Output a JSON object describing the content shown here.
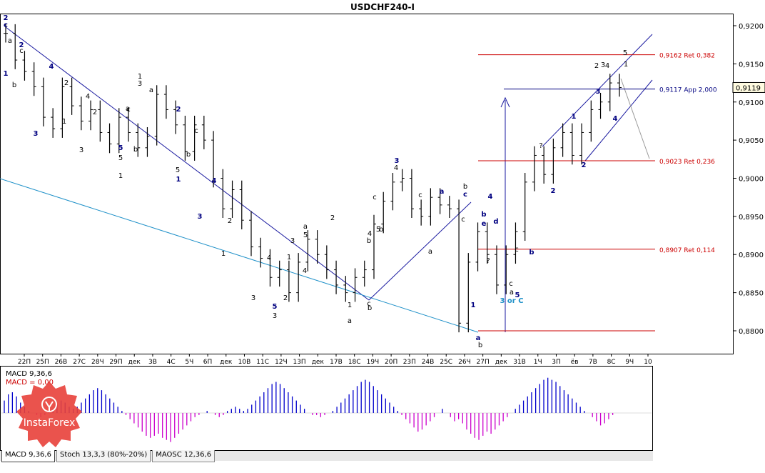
{
  "title": "USDCHF240-I",
  "chart_data": [
    {
      "type": "line",
      "title": "USDCHF240-I",
      "ylim": [
        0.877,
        0.9215
      ],
      "y_ticks": [
        "0,9200",
        "0,9150",
        "0,9100",
        "0,9050",
        "0,9000",
        "0,8950",
        "0,8900",
        "0,8850",
        "0,8800"
      ],
      "y_tick_values": [
        0.92,
        0.915,
        0.91,
        0.905,
        0.9,
        0.895,
        0.89,
        0.885,
        0.88
      ],
      "x_ticks": [
        "22П",
        "25П",
        "26В",
        "27С",
        "28Ч",
        "29П",
        "дек",
        "3В",
        "4С",
        "5Ч",
        "6П",
        "дек",
        "10В",
        "11С",
        "12Ч",
        "13П",
        "дек",
        "17В",
        "18С",
        "19Ч",
        "20П",
        "23П",
        "24В",
        "25С",
        "26Ч",
        "27П",
        "дек",
        "31В",
        "1Ч",
        "3П",
        "ёв",
        "7В",
        "8С",
        "9Ч",
        "10"
      ],
      "current_price": "0,9119",
      "current_value": 0.9119,
      "levels": [
        {
          "label": "0,9162 Ret 0,382",
          "value": 0.9162,
          "color": "#cc0000"
        },
        {
          "label": "0,9117 App 2,000",
          "value": 0.9117,
          "color": "#000080"
        },
        {
          "label": "0,9023 Ret 0,236",
          "value": 0.9023,
          "color": "#cc0000"
        },
        {
          "label": "0,8907 Ret 0,114",
          "value": 0.8907,
          "color": "#cc0000"
        },
        {
          "label": "",
          "value": 0.88,
          "color": "#cc0000"
        }
      ],
      "series": [
        {
          "values": [
            0.919,
            0.9155,
            0.914,
            0.912,
            0.908,
            0.9065,
            0.912,
            0.9095,
            0.9075,
            0.909,
            0.906,
            0.9045,
            0.908,
            0.906,
            0.904,
            0.9055,
            0.911,
            0.909,
            0.907,
            0.9035,
            0.907,
            0.905,
            0.9,
            0.896,
            0.8985,
            0.8945,
            0.891,
            0.8895,
            0.887,
            0.888,
            0.885,
            0.889,
            0.892,
            0.89,
            0.888,
            0.886,
            0.885,
            0.887,
            0.888,
            0.894,
            0.897,
            0.8995,
            0.9,
            0.896,
            0.895,
            0.8975,
            0.8965,
            0.896,
            0.881,
            0.889,
            0.893,
            0.89,
            0.886,
            0.89,
            0.893,
            0.8995,
            0.903,
            0.9005,
            0.904,
            0.906,
            0.903,
            0.906,
            0.909,
            0.91,
            0.9125,
            0.9119
          ]
        }
      ],
      "wave_labels": [
        {
          "text": "2",
          "color": "#000080"
        },
        {
          "text": "c",
          "color": "#000080"
        },
        {
          "text": "a",
          "color": "#000000"
        },
        {
          "text": "2",
          "color": "#000080"
        },
        {
          "text": "c",
          "color": "#000000"
        },
        {
          "text": "1",
          "color": "#000080"
        },
        {
          "text": "b",
          "color": "#000000"
        },
        {
          "text": "4",
          "color": "#000080"
        },
        {
          "text": "3",
          "color": "#000080"
        },
        {
          "text": "2",
          "color": "#000000"
        },
        {
          "text": "1",
          "color": "#000000"
        },
        {
          "text": "4",
          "color": "#000000"
        },
        {
          "text": "3",
          "color": "#000000"
        },
        {
          "text": "2",
          "color": "#000000"
        },
        {
          "text": "c",
          "color": "#000000"
        },
        {
          "text": "a",
          "color": "#000000"
        },
        {
          "text": "b",
          "color": "#000000"
        },
        {
          "text": "5",
          "color": "#000000"
        },
        {
          "text": "5",
          "color": "#000080"
        },
        {
          "text": "1",
          "color": "#000000"
        },
        {
          "text": "1",
          "color": "#000000"
        },
        {
          "text": "3",
          "color": "#000000"
        },
        {
          "text": "a",
          "color": "#000000"
        },
        {
          "text": "2",
          "color": "#000080"
        },
        {
          "text": "c",
          "color": "#000000"
        },
        {
          "text": "b",
          "color": "#000000"
        },
        {
          "text": "5",
          "color": "#000000"
        },
        {
          "text": "1",
          "color": "#000080"
        },
        {
          "text": "4",
          "color": "#000080"
        },
        {
          "text": "3",
          "color": "#000080"
        },
        {
          "text": "2",
          "color": "#000000"
        },
        {
          "text": "1",
          "color": "#000000"
        },
        {
          "text": "3",
          "color": "#000000"
        },
        {
          "text": "4",
          "color": "#000000"
        },
        {
          "text": "5",
          "color": "#000080"
        },
        {
          "text": "3",
          "color": "#000000"
        },
        {
          "text": "2",
          "color": "#000000"
        },
        {
          "text": "1",
          "color": "#000000"
        },
        {
          "text": "4",
          "color": "#000000"
        },
        {
          "text": "3",
          "color": "#000000"
        },
        {
          "text": "5",
          "color": "#000000"
        },
        {
          "text": "a",
          "color": "#000000"
        },
        {
          "text": "2",
          "color": "#000000"
        },
        {
          "text": "4",
          "color": "#000000"
        },
        {
          "text": "1",
          "color": "#000000"
        },
        {
          "text": "a",
          "color": "#000000"
        },
        {
          "text": "b",
          "color": "#000000"
        },
        {
          "text": "c",
          "color": "#000000"
        },
        {
          "text": "b",
          "color": "#000000"
        },
        {
          "text": "5",
          "color": "#000000"
        },
        {
          "text": "3",
          "color": "#000080"
        },
        {
          "text": "4",
          "color": "#000000"
        },
        {
          "text": "c",
          "color": "#000000"
        },
        {
          "text": "b",
          "color": "#000000"
        },
        {
          "text": "a",
          "color": "#000080"
        },
        {
          "text": "c",
          "color": "#000000"
        },
        {
          "text": "a",
          "color": "#000000"
        },
        {
          "text": "b",
          "color": "#000000"
        },
        {
          "text": "c",
          "color": "#000080"
        },
        {
          "text": "c",
          "color": "#000000"
        },
        {
          "text": "b",
          "color": "#000080"
        },
        {
          "text": "4",
          "color": "#000080"
        },
        {
          "text": "e",
          "color": "#000080"
        },
        {
          "text": "d",
          "color": "#000080"
        },
        {
          "text": "1",
          "color": "#000080"
        },
        {
          "text": "?",
          "color": "#000000"
        },
        {
          "text": "a",
          "color": "#000080"
        },
        {
          "text": "b",
          "color": "#000000"
        },
        {
          "text": "c",
          "color": "#000000"
        },
        {
          "text": "a",
          "color": "#000000"
        },
        {
          "text": "5",
          "color": "#000080"
        },
        {
          "text": "3 or C",
          "color": "#1e90c8"
        },
        {
          "text": "c",
          "color": "#000000"
        },
        {
          "text": "b",
          "color": "#000080"
        },
        {
          "text": "?",
          "color": "#000000"
        },
        {
          "text": "2",
          "color": "#000080"
        },
        {
          "text": "1",
          "color": "#000080"
        },
        {
          "text": "2",
          "color": "#000080"
        },
        {
          "text": "3",
          "color": "#000080"
        },
        {
          "text": "4",
          "color": "#000080"
        },
        {
          "text": "1",
          "color": "#000000"
        },
        {
          "text": "2",
          "color": "#000000"
        },
        {
          "text": "3",
          "color": "#000000"
        },
        {
          "text": "4",
          "color": "#000000"
        },
        {
          "text": "5",
          "color": "#000000"
        },
        {
          "text": "3",
          "color": "#000080"
        },
        {
          "text": "?",
          "color": "#000000"
        },
        {
          "text": "c",
          "color": "#000080"
        },
        {
          "text": "5",
          "color": "#000080"
        }
      ]
    },
    {
      "type": "bar",
      "title": "MACD 9,36,6",
      "signal_label": "MACD = 0,00",
      "colors": {
        "positive": "#0000cc",
        "negative": "#cc00cc"
      },
      "values": [
        6,
        9,
        10,
        8,
        5,
        3,
        1,
        0,
        -1,
        -2,
        -1,
        1,
        2,
        4,
        6,
        5,
        3,
        2,
        3,
        5,
        7,
        9,
        11,
        12,
        11,
        9,
        7,
        5,
        3,
        1,
        -1,
        -3,
        -5,
        -7,
        -9,
        -11,
        -12,
        -11,
        -10,
        -12,
        -13,
        -14,
        -12,
        -10,
        -8,
        -6,
        -4,
        -2,
        -1,
        0,
        1,
        0,
        -1,
        -2,
        -1,
        1,
        2,
        3,
        2,
        1,
        2,
        4,
        6,
        8,
        10,
        12,
        14,
        15,
        14,
        12,
        10,
        8,
        6,
        4,
        2,
        0,
        -1,
        -1,
        -2,
        -1,
        0,
        1,
        3,
        5,
        7,
        9,
        11,
        13,
        15,
        16,
        15,
        13,
        11,
        9,
        7,
        5,
        3,
        1,
        -1,
        -3,
        -5,
        -7,
        -9,
        -8,
        -6,
        -4,
        -2,
        0,
        2,
        0,
        -2,
        -4,
        -3,
        -5,
        -8,
        -10,
        -12,
        -13,
        -11,
        -9,
        -10,
        -8,
        -6,
        -4,
        -2,
        0,
        2,
        4,
        6,
        8,
        10,
        12,
        14,
        16,
        17,
        16,
        15,
        13,
        11,
        9,
        7,
        5,
        3,
        1,
        0,
        -2,
        -4,
        -6,
        -5,
        -3,
        -1,
        0,
        0
      ]
    }
  ],
  "tabs": [
    "MACD 9,36,6",
    "Stoch 13,3,3 (80%-20%)",
    "MAOSC 12,36,6"
  ],
  "logo_text": "InstaForex"
}
